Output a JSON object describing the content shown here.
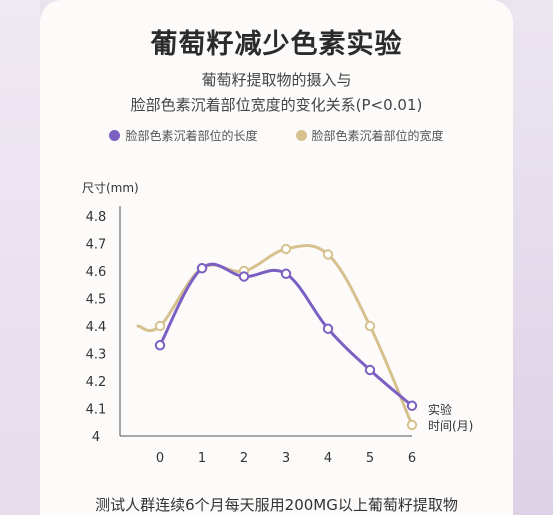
{
  "page": {
    "title": "葡萄籽减少色素实验",
    "subtitle_line1": "葡萄籽提取物的摄入与",
    "subtitle_line2": "脸部色素沉着部位宽度的变化关系(P<0.01)",
    "footer": "测试人群连续6个月每天服用200MG以上葡萄籽提取物"
  },
  "colors": {
    "length": "#7b5fc2",
    "width": "#d6c18f",
    "axis": "#555555",
    "marker_fill": "#ffffff"
  },
  "chart_data": {
    "type": "line",
    "title": "葡萄籽减少色素实验",
    "ylabel": "尺寸(mm)",
    "xlabel": "实验时间(月)",
    "xlabel_line1": "实验",
    "xlabel_line2": "时间(月)",
    "x": [
      0,
      1,
      2,
      3,
      4,
      5,
      6
    ],
    "xtick_labels": [
      "0",
      "1",
      "2",
      "3",
      "4",
      "5",
      "6"
    ],
    "ytick_labels": [
      "4.8",
      "4.7",
      "4.6",
      "4.5",
      "4.4",
      "4.3",
      "4.2",
      "4.1",
      "4"
    ],
    "yticks": [
      4.8,
      4.7,
      4.6,
      4.5,
      4.4,
      4.3,
      4.2,
      4.1,
      4.0
    ],
    "ylim": [
      4.0,
      4.8
    ],
    "xlim": [
      -0.9,
      6.5
    ],
    "grid": false,
    "legend_position": "top-center",
    "series": [
      {
        "name": "脸部色素沉着部位的长度",
        "color": "#7b5fc2",
        "values": [
          4.33,
          4.61,
          4.58,
          4.59,
          4.39,
          4.24,
          4.11
        ],
        "marker_x": [
          0,
          1,
          2,
          3,
          4,
          5,
          6
        ]
      },
      {
        "name": "脸部色素沉着部位的宽度",
        "color": "#d6c18f",
        "values": [
          4.4,
          4.61,
          4.6,
          4.68,
          4.66,
          4.4,
          4.04
        ],
        "marker_x": [
          0,
          1,
          2,
          3,
          4,
          5,
          6
        ]
      }
    ]
  }
}
